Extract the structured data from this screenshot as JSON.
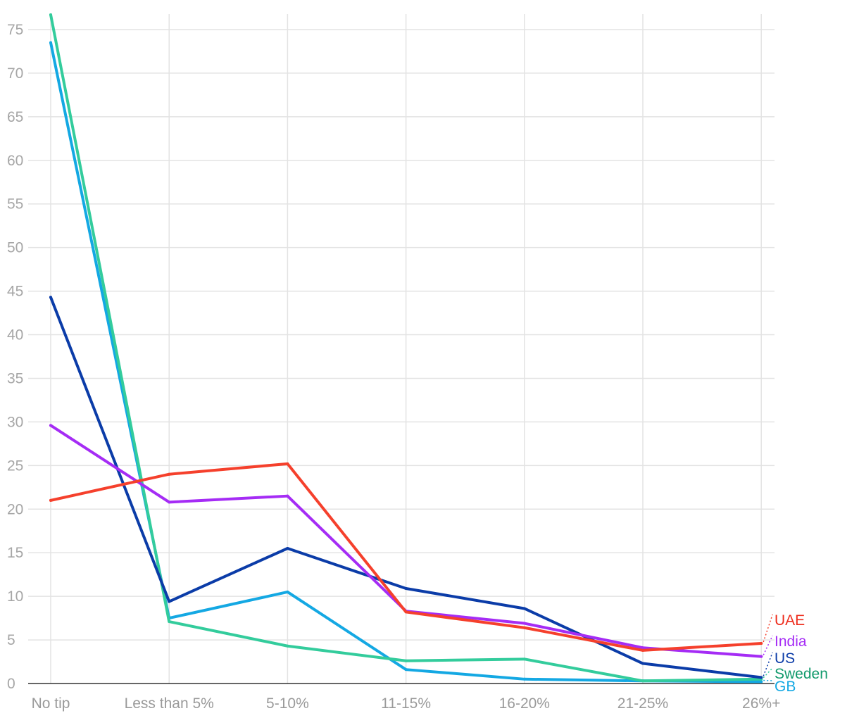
{
  "chart_data": {
    "type": "line",
    "categories": [
      "No tip",
      "Less than 5%",
      "5-10%",
      "11-15%",
      "16-20%",
      "21-25%",
      "26%+"
    ],
    "ylim": [
      0,
      75
    ],
    "yticks": [
      0,
      5,
      10,
      15,
      20,
      25,
      30,
      35,
      40,
      45,
      50,
      55,
      60,
      65,
      70,
      75
    ],
    "grid": true,
    "legend": "direct labels at right end of lines",
    "series": [
      {
        "name": "UAE",
        "color": "#f5402c",
        "label_color": "#ee2b1b",
        "values": [
          21.0,
          24.0,
          25.2,
          8.2,
          6.4,
          3.8,
          4.6
        ]
      },
      {
        "name": "India",
        "color": "#a52cf5",
        "label_color": "#a52cf5",
        "values": [
          29.6,
          20.8,
          21.5,
          8.3,
          6.9,
          4.1,
          3.1
        ]
      },
      {
        "name": "US",
        "color": "#0b3ca8",
        "label_color": "#0b3ca8",
        "values": [
          44.3,
          9.4,
          15.5,
          10.9,
          8.6,
          2.3,
          0.7
        ]
      },
      {
        "name": "Sweden",
        "color": "#33cc9c",
        "label_color": "#119a6c",
        "values": [
          76.7,
          7.1,
          4.3,
          2.6,
          2.8,
          0.3,
          0.5
        ]
      },
      {
        "name": "GB",
        "color": "#14a8e3",
        "label_color": "#14a8e3",
        "values": [
          73.5,
          7.5,
          10.5,
          1.6,
          0.5,
          0.3,
          0.2
        ]
      }
    ]
  }
}
